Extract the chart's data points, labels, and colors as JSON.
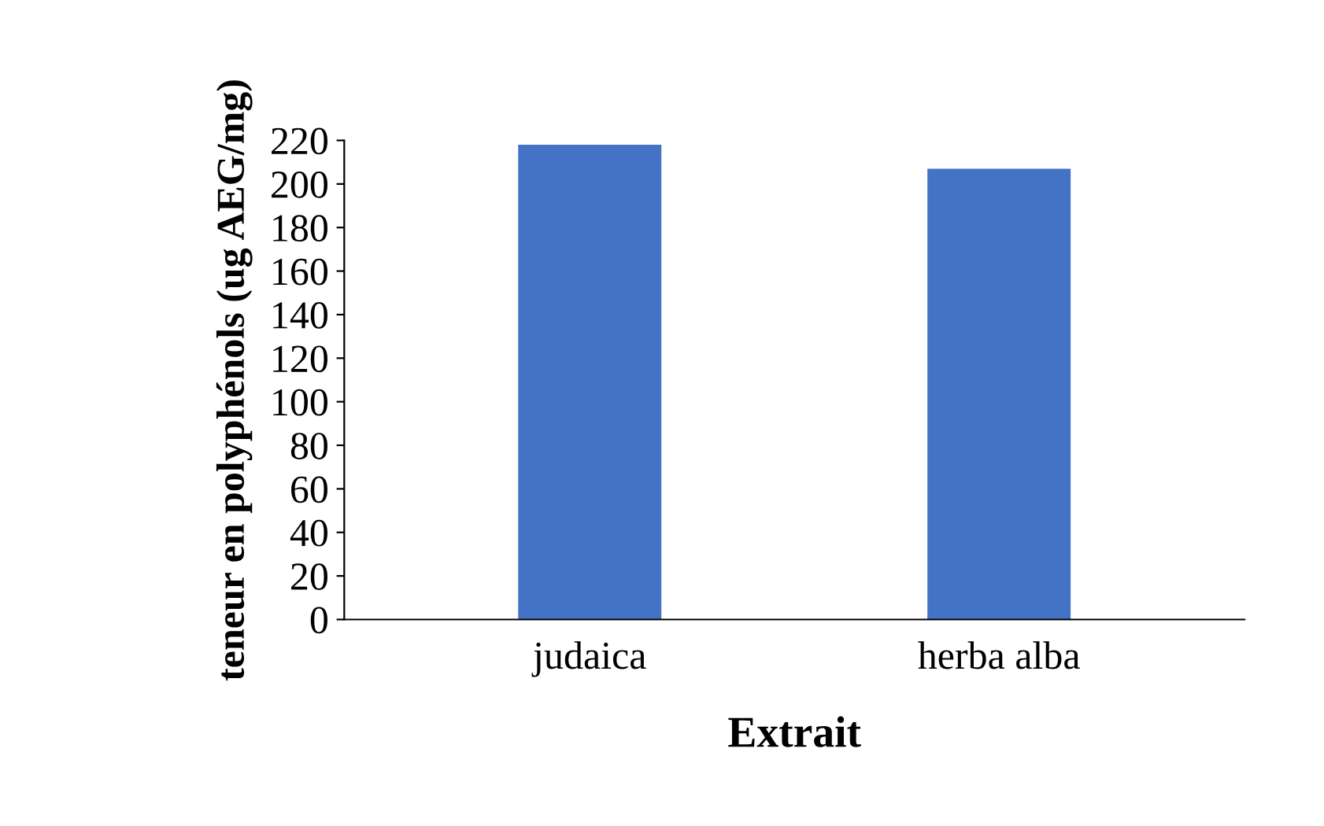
{
  "chart_data": {
    "type": "bar",
    "xlabel": "Extrait",
    "ylabel": "teneur en polyphénols (ug AEG/mg)",
    "categories": [
      "judaica",
      "herba alba"
    ],
    "values": [
      218,
      207
    ],
    "color": "#4472c4",
    "ylim": [
      0,
      220
    ],
    "yticks": [
      0,
      20,
      40,
      60,
      80,
      100,
      120,
      140,
      160,
      180,
      200,
      220
    ],
    "grid": false
  }
}
